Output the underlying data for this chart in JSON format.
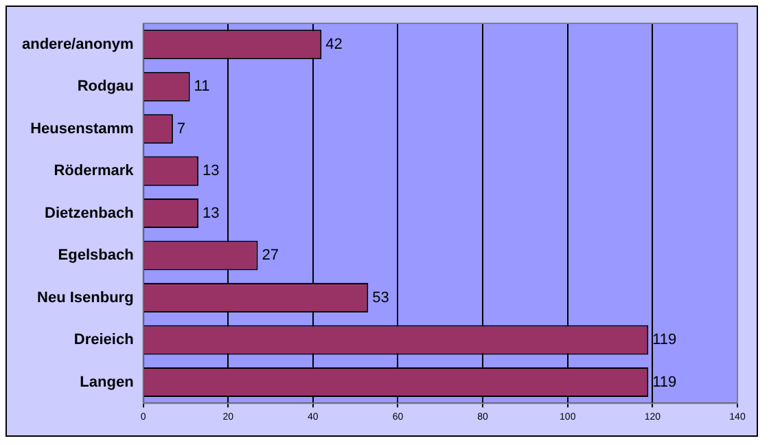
{
  "chart_data": {
    "type": "bar",
    "orientation": "horizontal",
    "categories": [
      "andere/anonym",
      "Rodgau",
      "Heusenstamm",
      "Rödermark",
      "Dietzenbach",
      "Egelsbach",
      "Neu Isenburg",
      "Dreieich",
      "Langen"
    ],
    "values": [
      42,
      11,
      7,
      13,
      13,
      27,
      53,
      119,
      119
    ],
    "color": "#993366",
    "xlim": [
      0,
      140
    ],
    "xticks": [
      0,
      20,
      40,
      60,
      80,
      100,
      120,
      140
    ],
    "grid": "x",
    "data_labels": true,
    "legend": false
  }
}
